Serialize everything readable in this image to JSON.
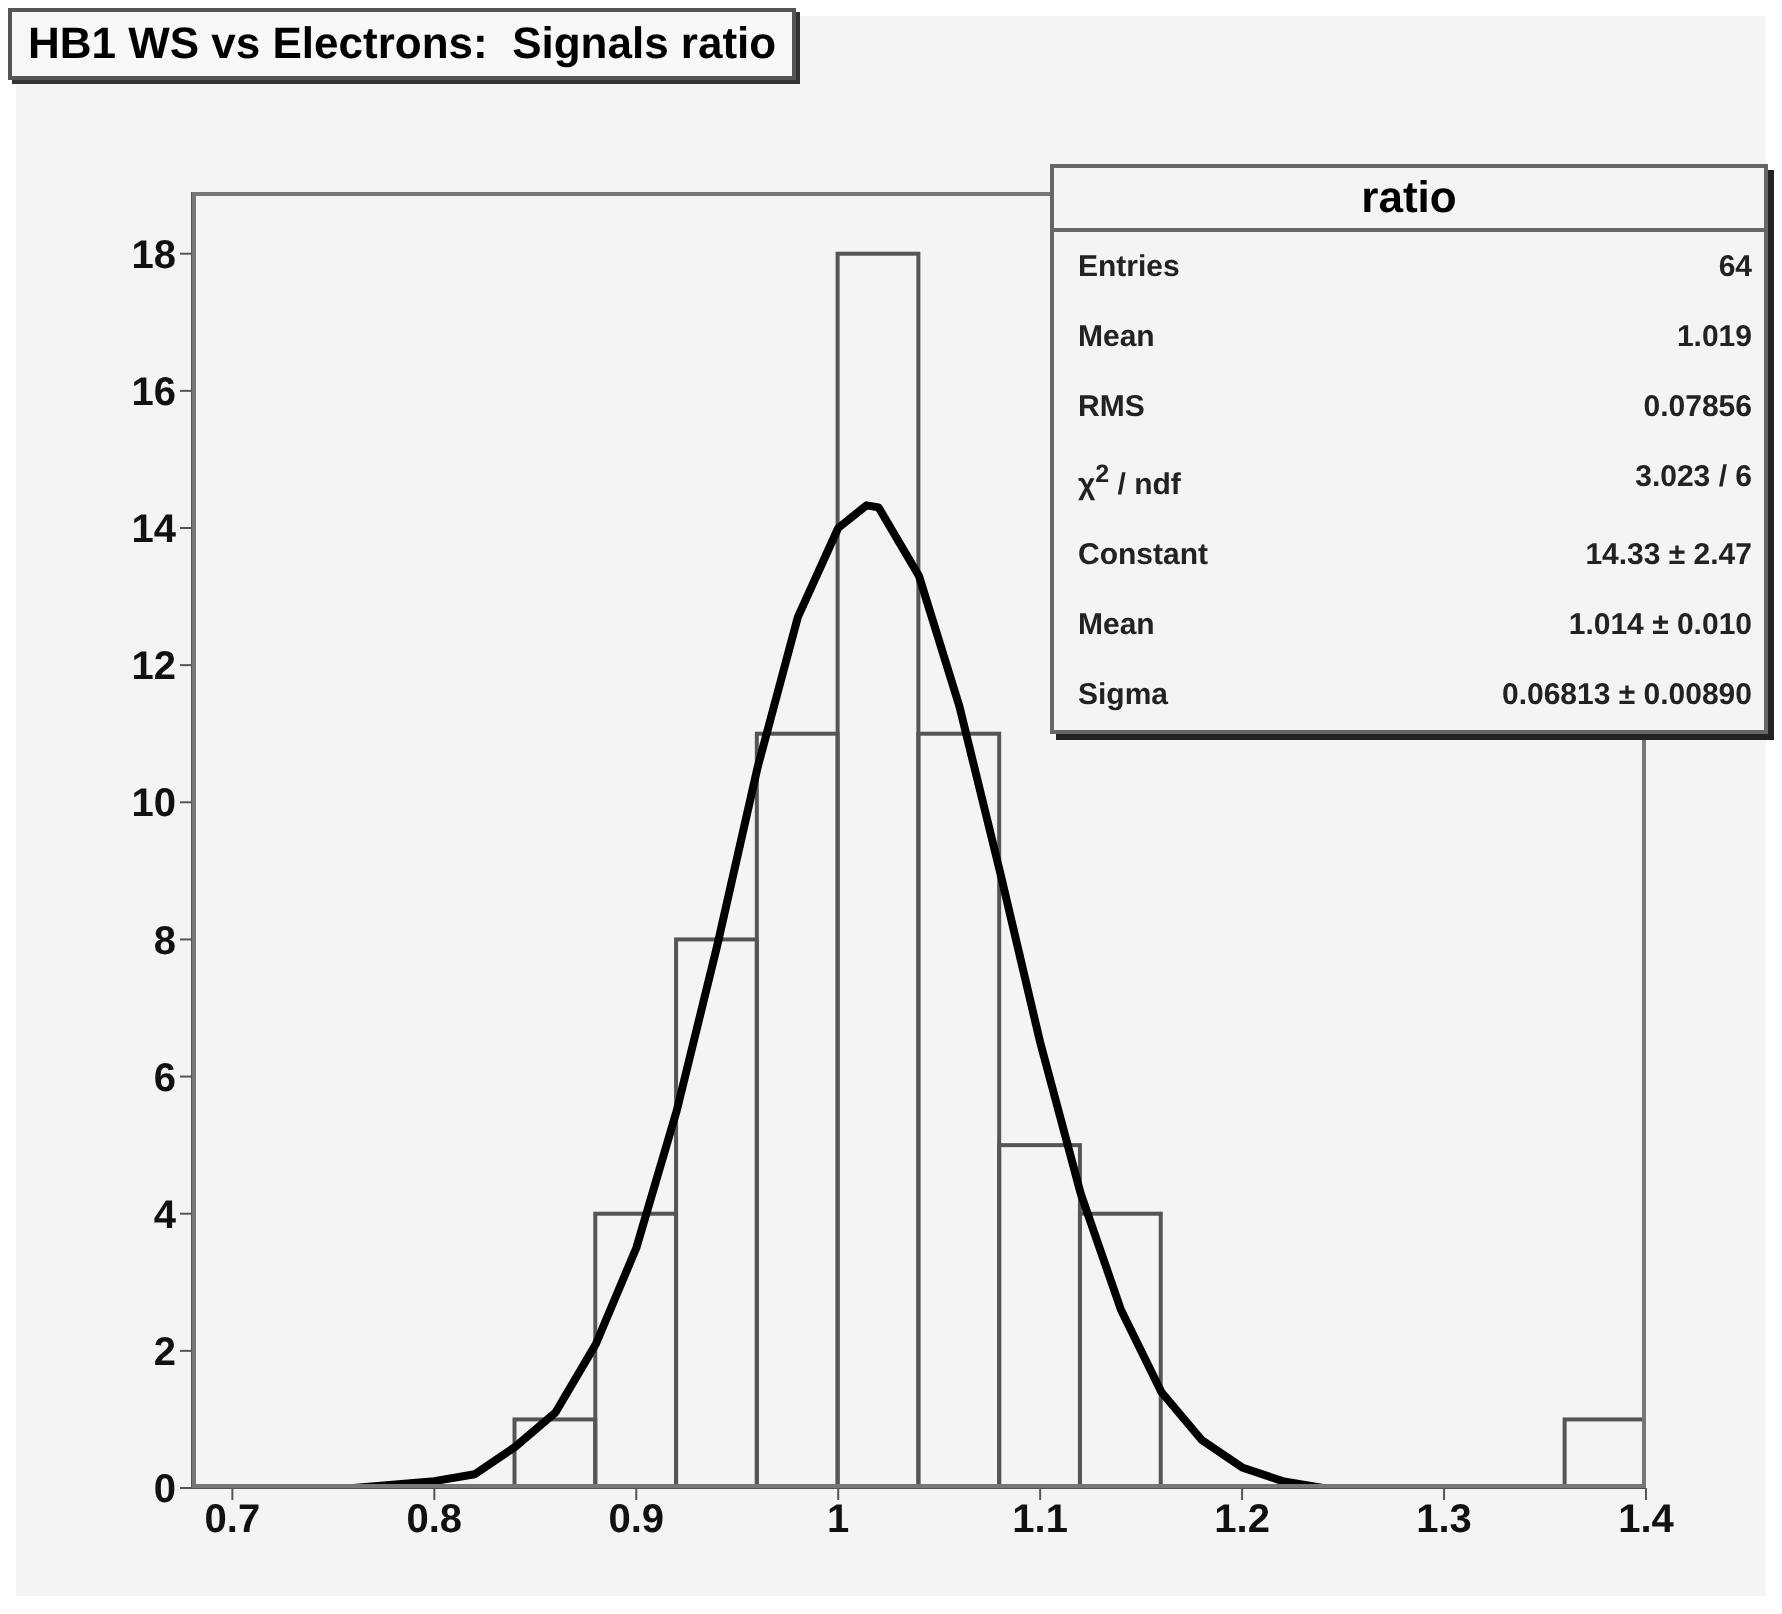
{
  "chart_data": {
    "type": "histogram",
    "title": "HB1 WS vs Electrons:  Signals ratio",
    "xlim": [
      0.68,
      1.4
    ],
    "xticks": [
      0.7,
      0.8,
      0.9,
      1,
      1.1,
      1.2,
      1.3,
      1.4
    ],
    "ylim": [
      0,
      18.9
    ],
    "yticks": [
      0,
      2,
      4,
      6,
      8,
      10,
      12,
      14,
      16,
      18
    ],
    "grid": false,
    "legend": false,
    "series": [
      {
        "color": "#555555",
        "bins": [
          0.68,
          0.72,
          0.76,
          0.8,
          0.84,
          0.88,
          0.92,
          0.96,
          1.0,
          1.04,
          1.08,
          1.12,
          1.16,
          1.2,
          1.24,
          1.28,
          1.32,
          1.36,
          1.4
        ],
        "values": [
          0,
          0,
          0,
          0,
          1,
          4,
          8,
          11,
          18,
          11,
          5,
          4,
          0,
          0,
          0,
          0,
          0,
          1
        ]
      },
      {
        "type": "line",
        "color": "#000000",
        "marker": "none",
        "x": [
          0.7,
          0.76,
          0.8,
          0.82,
          0.84,
          0.86,
          0.88,
          0.9,
          0.92,
          0.94,
          0.96,
          0.98,
          1.0,
          1.014,
          1.02,
          1.04,
          1.06,
          1.08,
          1.1,
          1.12,
          1.14,
          1.16,
          1.18,
          1.2,
          1.22,
          1.24,
          1.3,
          1.4
        ],
        "values": [
          0,
          0,
          0.1,
          0.2,
          0.6,
          1.1,
          2.1,
          3.5,
          5.5,
          7.9,
          10.5,
          12.7,
          14.0,
          14.33,
          14.3,
          13.3,
          11.4,
          9.0,
          6.5,
          4.3,
          2.6,
          1.4,
          0.7,
          0.3,
          0.1,
          0,
          0,
          0
        ]
      }
    ],
    "annotations": [
      "ratio",
      "Entries",
      "64",
      "Mean",
      "1.019",
      "RMS",
      "0.07856",
      "χ$^{2}$ / ndf",
      "3.023 / 6",
      "Constant",
      "14.33 ± 2.47",
      "Mean",
      "1.014 ± 0.010",
      "Sigma",
      "0.06813 ± 0.00890"
    ]
  }
}
